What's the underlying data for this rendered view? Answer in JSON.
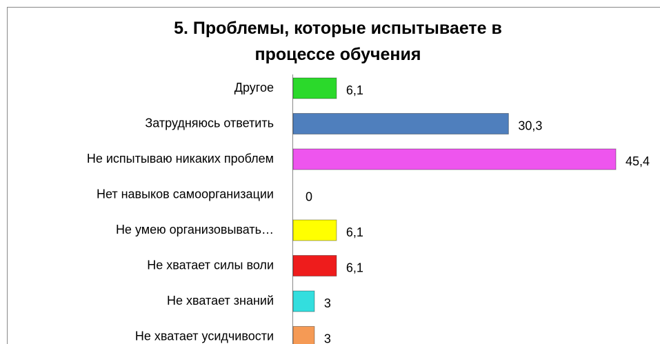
{
  "chart_data": {
    "type": "bar",
    "orientation": "horizontal",
    "title": "5. Проблемы, которые испытываете в процессе обучения",
    "categories": [
      "Другое",
      "Затрудняюсь ответить",
      "Не испытываю никаких проблем",
      "Нет навыков самоорганизации",
      "Не умею организовывать…",
      "Не хватает силы воли",
      "Не хватает знаний",
      "Не хватает усидчивости"
    ],
    "values": [
      6.1,
      30.3,
      45.4,
      0,
      6.1,
      6.1,
      3,
      3
    ],
    "value_labels": [
      "6,1",
      "30,3",
      "45,4",
      "0",
      "6,1",
      "6,1",
      "3",
      "3"
    ],
    "colors": [
      "#2bd92b",
      "#4f7fbd",
      "#ee55ee",
      "#ffff00",
      "#ee1c1c",
      "#33dede",
      "#f59a55"
    ]
  }
}
